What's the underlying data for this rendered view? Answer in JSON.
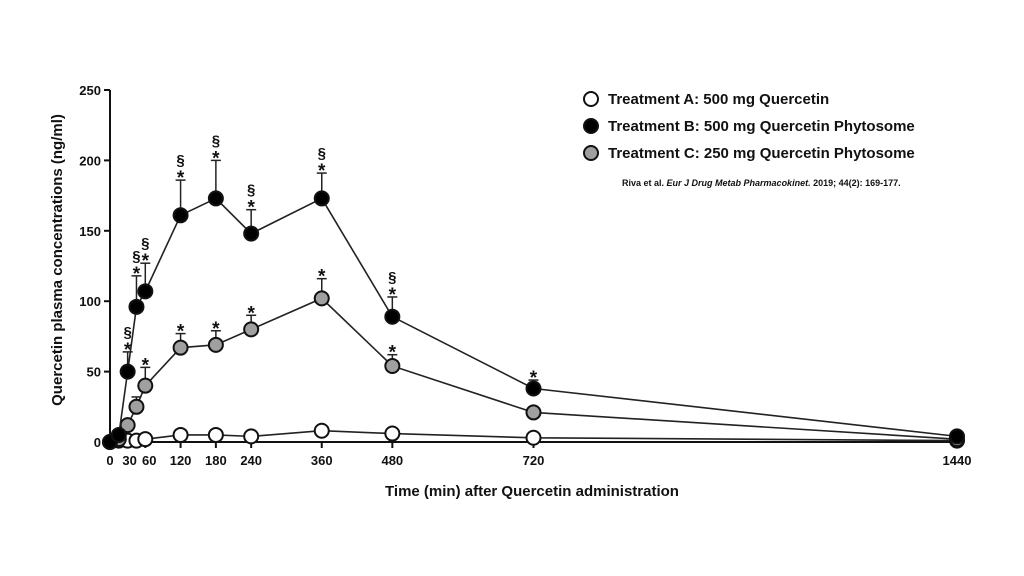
{
  "chart_data": {
    "type": "line",
    "xlabel": "Time (min) after Quercetin administration",
    "ylabel": "Quercetin plasma concentrations (ng/ml)",
    "xlim": [
      0,
      1440
    ],
    "ylim": [
      0,
      250
    ],
    "x_ticks": [
      0,
      30,
      60,
      120,
      180,
      240,
      360,
      480,
      720,
      1440
    ],
    "y_ticks": [
      0,
      50,
      100,
      150,
      200,
      250
    ],
    "legend_position": "top-right",
    "citation": {
      "prefix": "Riva et al. ",
      "journal": "Eur J Drug Metab Pharmacokinet.",
      "suffix": " 2019; 44(2): 169-177."
    },
    "series": [
      {
        "name": "Treatment A: 500 mg Quercetin",
        "marker_fill": "#ffffff",
        "x": [
          0,
          15,
          30,
          45,
          60,
          120,
          180,
          240,
          360,
          480,
          720,
          1440
        ],
        "y": [
          0,
          1,
          1,
          1,
          2,
          5,
          5,
          4,
          8,
          6,
          3,
          1
        ],
        "error": [
          0,
          0,
          0,
          0,
          0,
          0,
          0,
          0,
          0,
          0,
          0,
          0
        ],
        "asterisk": [],
        "section": []
      },
      {
        "name": "Treatment B: 500 mg Quercetin Phytosome",
        "marker_fill": "#000000",
        "x": [
          0,
          15,
          30,
          45,
          60,
          120,
          180,
          240,
          360,
          480,
          720,
          1440
        ],
        "y": [
          0,
          5,
          50,
          96,
          107,
          161,
          173,
          148,
          173,
          89,
          38,
          4
        ],
        "error": [
          0,
          0,
          14,
          22,
          20,
          25,
          27,
          17,
          18,
          14,
          6,
          0
        ],
        "asterisk": [
          30,
          45,
          60,
          120,
          180,
          240,
          360,
          480,
          720
        ],
        "section": [
          30,
          45,
          60,
          120,
          180,
          240,
          360,
          480
        ]
      },
      {
        "name": "Treatment C: 250 mg Quercetin Phytosome",
        "marker_fill": "#a0a0a0",
        "x": [
          0,
          15,
          30,
          45,
          60,
          120,
          180,
          240,
          360,
          480,
          720,
          1440
        ],
        "y": [
          0,
          2,
          12,
          25,
          40,
          67,
          69,
          80,
          102,
          54,
          21,
          2
        ],
        "error": [
          0,
          0,
          0,
          7,
          13,
          10,
          10,
          10,
          14,
          8,
          0,
          0
        ],
        "asterisk": [
          60,
          120,
          180,
          240,
          360,
          480
        ],
        "section": []
      }
    ]
  }
}
